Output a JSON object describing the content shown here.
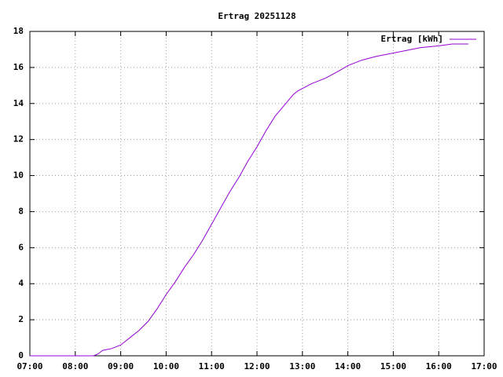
{
  "chart_data": {
    "type": "line",
    "title": "Ertrag 20251128",
    "x": [
      7.0,
      8.4,
      8.5,
      8.6,
      8.8,
      9.0,
      9.2,
      9.4,
      9.6,
      9.8,
      10.0,
      10.2,
      10.4,
      10.6,
      10.8,
      11.0,
      11.2,
      11.4,
      11.6,
      11.8,
      12.0,
      12.2,
      12.4,
      12.6,
      12.8,
      12.9,
      13.2,
      13.5,
      13.8,
      14.0,
      14.3,
      14.6,
      15.0,
      15.3,
      15.6,
      16.0,
      16.3,
      16.65
    ],
    "series": [
      {
        "name": "Ertrag [kWh]",
        "color": "#9400d3",
        "values": [
          0,
          0,
          0.1,
          0.3,
          0.4,
          0.6,
          1.0,
          1.4,
          1.9,
          2.6,
          3.4,
          4.1,
          4.9,
          5.6,
          6.4,
          7.3,
          8.2,
          9.1,
          9.9,
          10.8,
          11.6,
          12.5,
          13.3,
          13.9,
          14.5,
          14.7,
          15.1,
          15.4,
          15.8,
          16.1,
          16.4,
          16.6,
          16.8,
          16.95,
          17.1,
          17.2,
          17.3,
          17.3
        ]
      }
    ],
    "xlim": [
      7,
      17
    ],
    "xticks": [
      {
        "value": 7,
        "label": "07:00"
      },
      {
        "value": 8,
        "label": "08:00"
      },
      {
        "value": 9,
        "label": "09:00"
      },
      {
        "value": 10,
        "label": "10:00"
      },
      {
        "value": 11,
        "label": "11:00"
      },
      {
        "value": 12,
        "label": "12:00"
      },
      {
        "value": 13,
        "label": "13:00"
      },
      {
        "value": 14,
        "label": "14:00"
      },
      {
        "value": 15,
        "label": "15:00"
      },
      {
        "value": 16,
        "label": "16:00"
      },
      {
        "value": 17,
        "label": "17:00"
      }
    ],
    "ylim": [
      0,
      18
    ],
    "yticks": [
      0,
      2,
      4,
      6,
      8,
      10,
      12,
      14,
      16,
      18
    ],
    "grid": true,
    "legend": "top-right"
  }
}
